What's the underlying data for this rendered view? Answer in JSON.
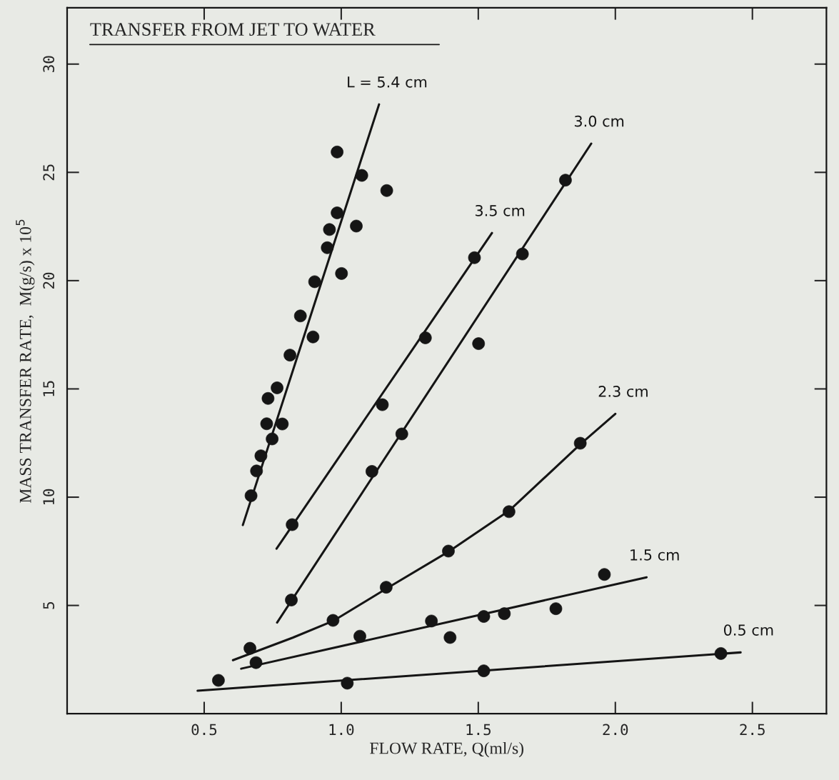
{
  "chart_data": {
    "type": "scatter",
    "title": "TRANSFER FROM JET TO WATER",
    "xlabel": "FLOW RATE, Q(ml/s)",
    "ylabel": "MASS TRANSFER RATE,  M(g/s) x 10$^{5}$",
    "xlim": [
      0,
      2.77
    ],
    "ylim": [
      0,
      32.6
    ],
    "xticks": [
      0.5,
      {
        "value": 1,
        "label": "1.0"
      },
      1.5,
      {
        "value": 2,
        "label": "2.0"
      },
      2.5
    ],
    "yticks": [
      5,
      10,
      15,
      20,
      25,
      30
    ],
    "series": [
      {
        "marker": "circle",
        "color": "#151515",
        "x": [
          0.985,
          1.075,
          1.166,
          0.985,
          0.957,
          1.055,
          0.949,
          1.001,
          0.903,
          0.851,
          0.897,
          0.813,
          0.766,
          0.733,
          0.728,
          0.785,
          0.748,
          0.707,
          0.691,
          0.671
        ],
        "values": [
          25.94,
          24.86,
          24.16,
          23.13,
          22.36,
          22.52,
          21.52,
          20.33,
          19.95,
          18.37,
          17.4,
          16.56,
          15.05,
          14.56,
          13.39,
          13.38,
          12.69,
          11.91,
          11.21,
          10.07
        ]
      },
      {
        "type": "line",
        "name": "L = 5.4 cm",
        "color": "#151515",
        "marker": "none",
        "line_style": "solid",
        "x": [
          0.641,
          1.138
        ],
        "values": [
          8.71,
          28.14
        ]
      },
      {
        "marker": "circle",
        "color": "#151515",
        "x": [
          0.821,
          1.15,
          1.307,
          1.486
        ],
        "values": [
          8.73,
          14.27,
          17.36,
          21.06
        ]
      },
      {
        "type": "line",
        "name": "3.5 cm",
        "color": "#151515",
        "marker": "none",
        "line_style": "solid",
        "x": [
          0.764,
          1.55
        ],
        "values": [
          7.62,
          22.2
        ]
      },
      {
        "marker": "circle",
        "color": "#151515",
        "x": [
          0.818,
          1.112,
          1.221,
          1.501,
          1.661,
          1.818
        ],
        "values": [
          5.25,
          11.19,
          12.92,
          17.09,
          21.23,
          24.64
        ]
      },
      {
        "type": "line",
        "name": "3.0 cm",
        "color": "#151515",
        "marker": "none",
        "line_style": "solid",
        "x": [
          0.766,
          1.912
        ],
        "values": [
          4.21,
          26.33
        ]
      },
      {
        "marker": "circle",
        "color": "#151515",
        "x": [
          0.667,
          0.97,
          1.164,
          1.391,
          1.612,
          1.872
        ],
        "values": [
          3.02,
          4.31,
          5.84,
          7.51,
          9.33,
          12.49
        ]
      },
      {
        "type": "line",
        "name": "2.3 cm",
        "color": "#151515",
        "marker": "none",
        "line_style": "solid",
        "x": [
          0.605,
          0.823,
          0.97,
          1.164,
          1.391,
          1.613,
          1.871,
          2.0
        ],
        "values": [
          2.47,
          3.51,
          4.28,
          5.77,
          7.48,
          9.38,
          12.43,
          13.85
        ]
      },
      {
        "marker": "circle",
        "color": "#151515",
        "x": [
          0.689,
          1.068,
          1.329,
          1.397,
          1.52,
          1.595,
          1.783,
          1.96
        ],
        "values": [
          2.36,
          3.58,
          4.28,
          3.52,
          4.49,
          4.62,
          4.85,
          6.43
        ]
      },
      {
        "type": "line",
        "name": "1.5 cm",
        "color": "#151515",
        "marker": "none",
        "line_style": "solid",
        "x": [
          0.635,
          2.114
        ],
        "values": [
          2.08,
          6.3
        ]
      },
      {
        "marker": "circle",
        "color": "#151515",
        "x": [
          0.552,
          1.022,
          1.52,
          2.385
        ],
        "values": [
          1.54,
          1.41,
          1.98,
          2.78
        ]
      },
      {
        "type": "line",
        "name": "0.5 cm",
        "color": "#151515",
        "marker": "none",
        "line_style": "solid",
        "x": [
          0.476,
          2.457
        ],
        "values": [
          1.06,
          2.83
        ]
      }
    ]
  }
}
